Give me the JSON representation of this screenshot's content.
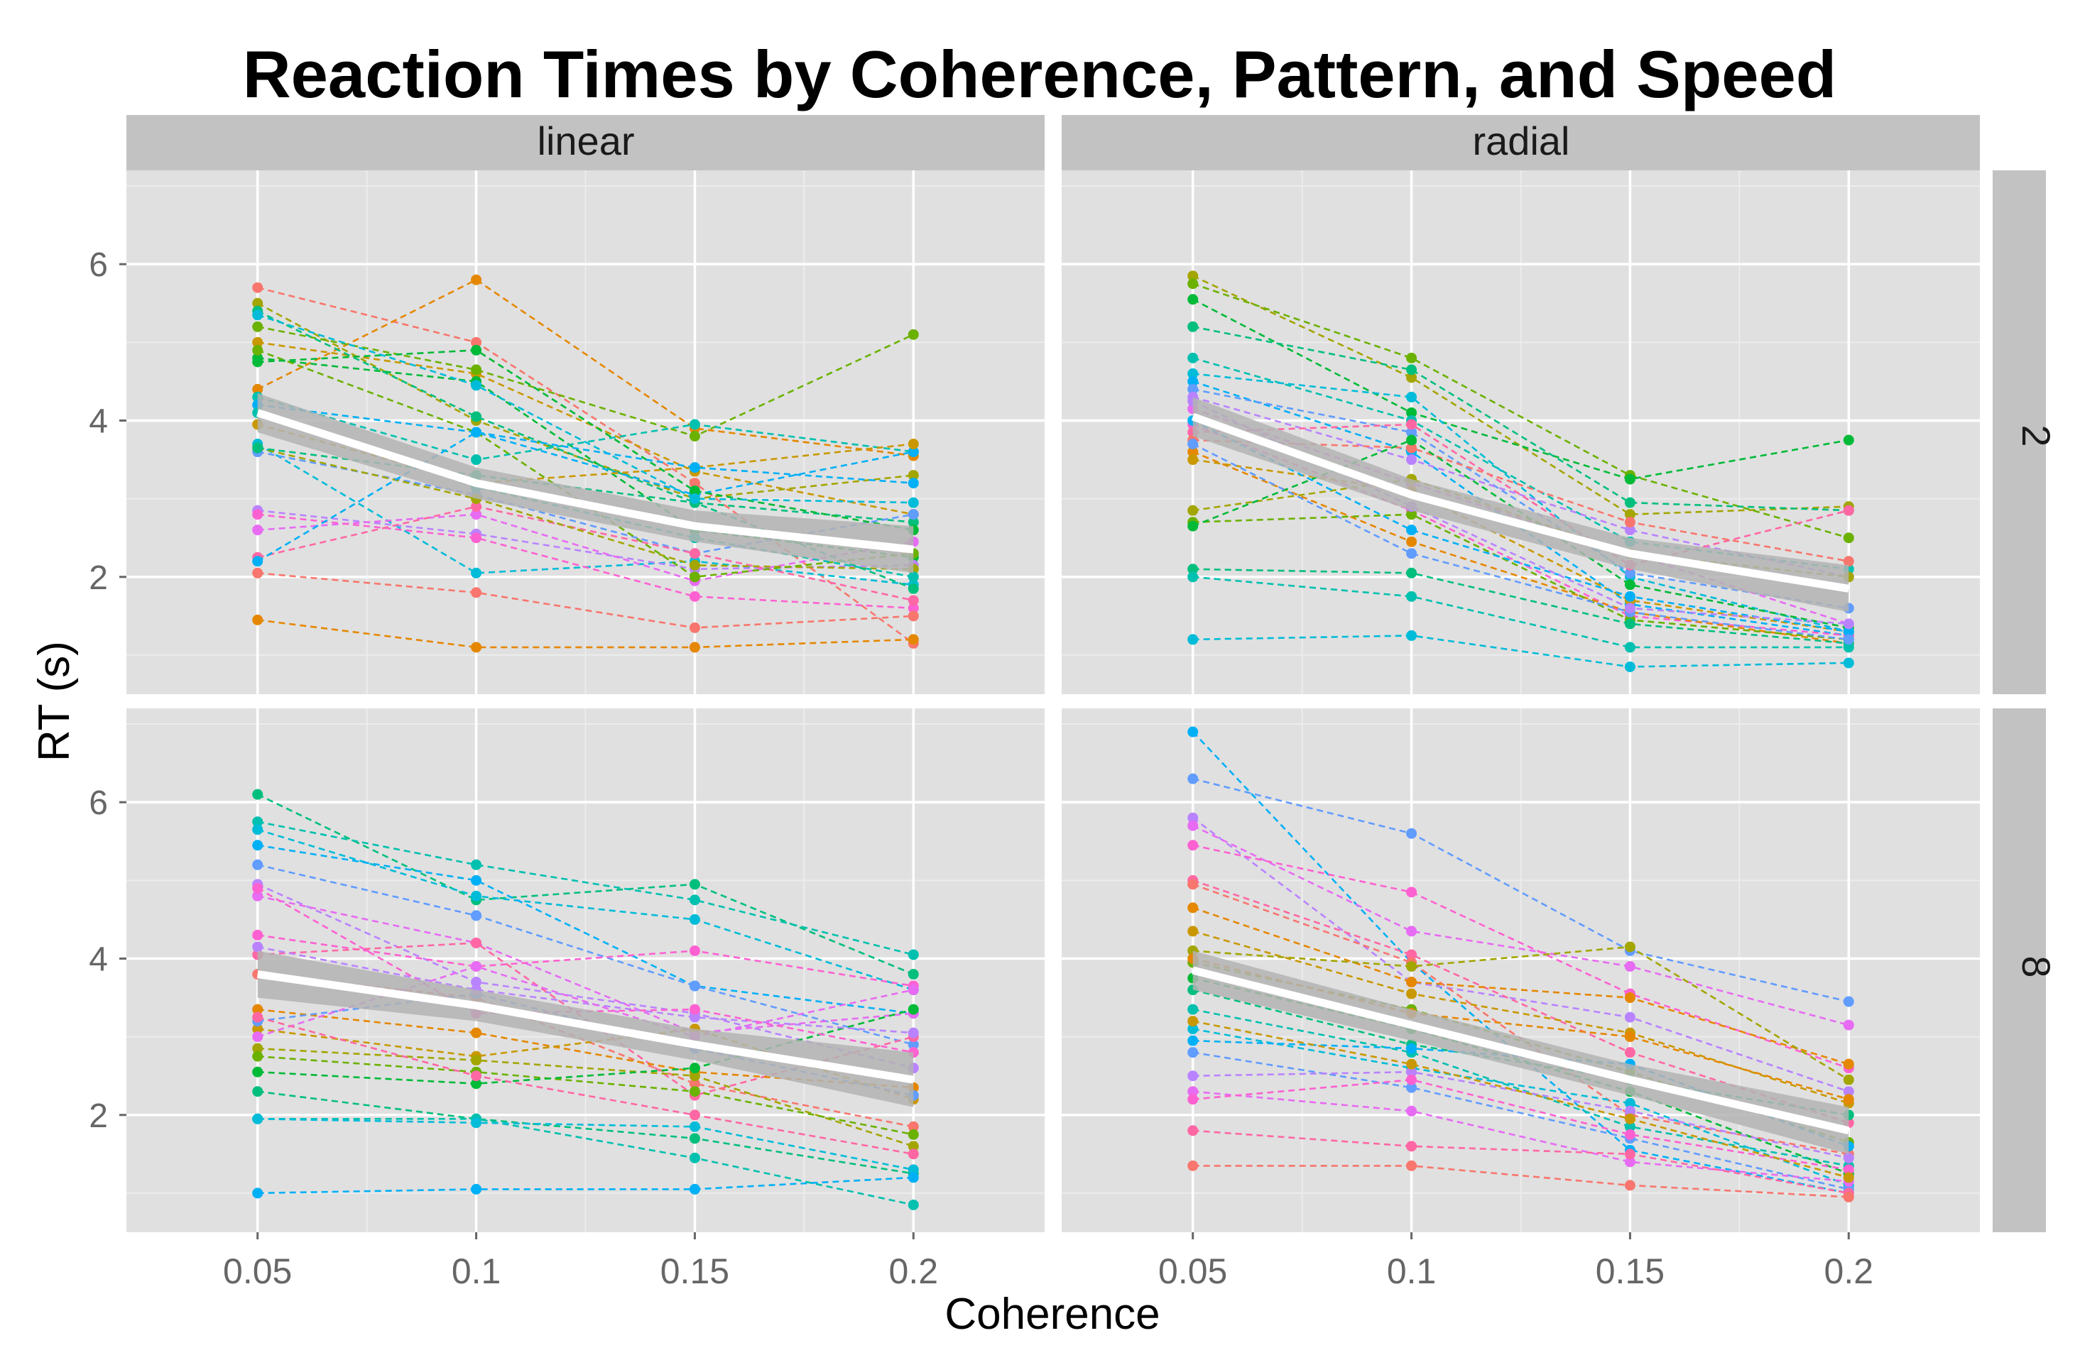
{
  "chart_data": {
    "type": "line",
    "title": "Reaction Times by Coherence, Pattern, and Speed",
    "xlabel": "Coherence",
    "ylabel": "RT (s)",
    "x": [
      0.05,
      0.1,
      0.15,
      0.2
    ],
    "x_tick_labels": [
      "0.05",
      "0.1",
      "0.15",
      "0.2"
    ],
    "y_ticks": [
      2,
      4,
      6
    ],
    "y_tick_labels": [
      "2",
      "4",
      "6"
    ],
    "ylim": [
      0.5,
      7.2
    ],
    "grid": true,
    "legend": "none",
    "column_facets": [
      "linear",
      "radial"
    ],
    "row_facets": [
      "2",
      "8"
    ],
    "colors": {
      "panel_bg": "#e0e0e0",
      "strip_bg": "#c2c2c2",
      "grid_major": "#ffffff",
      "grid_minor": "#ececec",
      "mean_line": "#ffffff",
      "ci_band": "#b3b3b3",
      "tick_text": "#666666",
      "palette": [
        "#f8766d",
        "#e58700",
        "#c99800",
        "#a3a500",
        "#6bb100",
        "#00ba38",
        "#00bf7d",
        "#00c0af",
        "#00bcd8",
        "#00b0f6",
        "#619cff",
        "#b983ff",
        "#e76bf3",
        "#fd61d1",
        "#ff67a4"
      ]
    },
    "panels": [
      {
        "pattern": "linear",
        "speed": "2",
        "mean": [
          4.1,
          3.2,
          2.65,
          2.35
        ],
        "ci_low": [
          3.85,
          3.0,
          2.45,
          2.05
        ],
        "ci_high": [
          4.35,
          3.4,
          2.85,
          2.65
        ],
        "series": [
          {
            "values": [
              5.7,
              5.0,
              3.2,
              1.15
            ]
          },
          {
            "values": [
              4.4,
              5.8,
              3.9,
              3.55
            ]
          },
          {
            "values": [
              5.0,
              4.6,
              3.35,
              2.8
            ]
          },
          {
            "values": [
              5.5,
              4.0,
              3.0,
              3.3
            ]
          },
          {
            "values": [
              5.2,
              4.65,
              3.8,
              5.1
            ]
          },
          {
            "values": [
              4.8,
              4.5,
              2.6,
              2.25
            ]
          },
          {
            "values": [
              5.4,
              4.05,
              2.95,
              2.7
            ]
          },
          {
            "values": [
              4.3,
              3.5,
              3.95,
              3.6
            ]
          },
          {
            "values": [
              3.7,
              2.05,
              2.2,
              1.9
            ]
          },
          {
            "values": [
              4.2,
              3.85,
              3.05,
              3.6
            ]
          },
          {
            "values": [
              3.6,
              3.05,
              2.3,
              2.8
            ]
          },
          {
            "values": [
              2.85,
              2.55,
              2.1,
              2.15
            ]
          },
          {
            "values": [
              2.6,
              2.8,
              1.95,
              2.45
            ]
          },
          {
            "values": [
              2.8,
              2.5,
              1.75,
              1.6
            ]
          },
          {
            "values": [
              2.25,
              2.9,
              2.3,
              1.7
            ]
          },
          {
            "values": [
              2.05,
              1.8,
              1.35,
              1.5
            ]
          },
          {
            "values": [
              1.45,
              1.1,
              1.1,
              1.2
            ]
          },
          {
            "values": [
              3.95,
              3.2,
              3.4,
              3.7
            ]
          },
          {
            "values": [
              3.65,
              3.0,
              2.15,
              2.1
            ]
          },
          {
            "values": [
              4.9,
              3.85,
              2.0,
              2.3
            ]
          },
          {
            "values": [
              4.75,
              4.9,
              3.1,
              2.6
            ]
          },
          {
            "values": [
              3.65,
              3.3,
              2.95,
              1.85
            ]
          },
          {
            "values": [
              4.1,
              3.15,
              2.5,
              2.0
            ]
          },
          {
            "values": [
              5.35,
              4.45,
              3.0,
              2.95
            ]
          },
          {
            "values": [
              2.2,
              3.85,
              3.4,
              3.2
            ]
          }
        ]
      },
      {
        "pattern": "radial",
        "speed": "2",
        "mean": [
          4.05,
          3.05,
          2.3,
          1.85
        ],
        "ci_low": [
          3.8,
          2.85,
          2.1,
          1.55
        ],
        "ci_high": [
          4.3,
          3.25,
          2.5,
          2.15
        ],
        "series": [
          {
            "values": [
              5.85,
              4.55,
              2.8,
              2.9
            ]
          },
          {
            "values": [
              5.75,
              4.8,
              3.3,
              2.5
            ]
          },
          {
            "values": [
              5.55,
              4.1,
              3.25,
              3.75
            ]
          },
          {
            "values": [
              5.2,
              4.65,
              2.95,
              2.85
            ]
          },
          {
            "values": [
              4.8,
              4.0,
              2.45,
              2.1
            ]
          },
          {
            "values": [
              4.6,
              4.3,
              2.0,
              1.3
            ]
          },
          {
            "values": [
              4.5,
              3.6,
              1.65,
              1.25
            ]
          },
          {
            "values": [
              4.4,
              3.85,
              2.05,
              1.6
            ]
          },
          {
            "values": [
              4.3,
              3.5,
              2.6,
              2.0
            ]
          },
          {
            "values": [
              4.15,
              3.2,
              2.3,
              1.4
            ]
          },
          {
            "values": [
              3.95,
              2.85,
              1.5,
              1.25
            ]
          },
          {
            "values": [
              3.85,
              3.95,
              2.15,
              2.85
            ]
          },
          {
            "values": [
              3.75,
              3.65,
              2.7,
              2.2
            ]
          },
          {
            "values": [
              3.6,
              2.45,
              1.55,
              1.15
            ]
          },
          {
            "values": [
              3.5,
              3.1,
              1.7,
              1.3
            ]
          },
          {
            "values": [
              2.85,
              3.25,
              2.3,
              2.0
            ]
          },
          {
            "values": [
              2.7,
              2.8,
              1.45,
              1.2
            ]
          },
          {
            "values": [
              2.65,
              3.75,
              1.9,
              1.35
            ]
          },
          {
            "values": [
              2.1,
              2.05,
              1.4,
              1.15
            ]
          },
          {
            "values": [
              2.0,
              1.75,
              1.1,
              1.1
            ]
          },
          {
            "values": [
              1.2,
              1.25,
              0.85,
              0.9
            ]
          },
          {
            "values": [
              4.0,
              2.6,
              1.75,
              1.3
            ]
          },
          {
            "values": [
              3.7,
              2.3,
              1.55,
              1.2
            ]
          },
          {
            "values": [
              4.25,
              2.9,
              1.6,
              1.4
            ]
          }
        ]
      },
      {
        "pattern": "linear",
        "speed": "8",
        "mean": [
          3.8,
          3.4,
          2.9,
          2.45
        ],
        "ci_low": [
          3.5,
          3.2,
          2.7,
          2.1
        ],
        "ci_high": [
          4.1,
          3.6,
          3.1,
          2.8
        ],
        "series": [
          {
            "values": [
              6.1,
              4.75,
              4.95,
              3.8
            ]
          },
          {
            "values": [
              5.75,
              5.2,
              4.75,
              4.05
            ]
          },
          {
            "values": [
              5.65,
              4.8,
              4.5,
              3.6
            ]
          },
          {
            "values": [
              5.45,
              5.0,
              3.65,
              3.3
            ]
          },
          {
            "values": [
              5.2,
              4.55,
              3.65,
              2.9
            ]
          },
          {
            "values": [
              4.95,
              3.7,
              3.3,
              2.6
            ]
          },
          {
            "values": [
              4.8,
              4.2,
              3.05,
              3.3
            ]
          },
          {
            "values": [
              4.3,
              3.9,
              4.1,
              3.65
            ]
          },
          {
            "values": [
              4.05,
              4.2,
              2.25,
              3.0
            ]
          },
          {
            "values": [
              3.8,
              3.5,
              2.4,
              1.85
            ]
          },
          {
            "values": [
              3.35,
              3.05,
              2.55,
              2.35
            ]
          },
          {
            "values": [
              3.1,
              2.75,
              3.1,
              2.2
            ]
          },
          {
            "values": [
              2.85,
              2.7,
              2.5,
              1.6
            ]
          },
          {
            "values": [
              2.75,
              2.55,
              2.3,
              1.75
            ]
          },
          {
            "values": [
              2.55,
              2.4,
              2.6,
              3.35
            ]
          },
          {
            "values": [
              2.3,
              1.95,
              1.7,
              1.25
            ]
          },
          {
            "values": [
              1.95,
              1.95,
              1.45,
              0.85
            ]
          },
          {
            "values": [
              1.95,
              1.9,
              1.85,
              1.3
            ]
          },
          {
            "values": [
              1.0,
              1.05,
              1.05,
              1.2
            ]
          },
          {
            "values": [
              3.2,
              3.55,
              2.85,
              2.25
            ]
          },
          {
            "values": [
              4.15,
              3.6,
              3.25,
              3.05
            ]
          },
          {
            "values": [
              3.0,
              3.9,
              3.0,
              3.6
            ]
          },
          {
            "values": [
              4.9,
              3.3,
              3.35,
              2.8
            ]
          },
          {
            "values": [
              3.25,
              2.5,
              2.0,
              1.5
            ]
          }
        ]
      },
      {
        "pattern": "radial",
        "speed": "8",
        "mean": [
          3.85,
          3.15,
          2.45,
          1.8
        ],
        "ci_low": [
          3.6,
          2.95,
          2.25,
          1.5
        ],
        "ci_high": [
          4.1,
          3.35,
          2.65,
          2.1
        ],
        "series": [
          {
            "values": [
              6.9,
              3.95,
              1.55,
              1.0
            ]
          },
          {
            "values": [
              6.3,
              5.6,
              4.1,
              3.45
            ]
          },
          {
            "values": [
              5.8,
              3.7,
              3.25,
              2.3
            ]
          },
          {
            "values": [
              5.7,
              4.35,
              3.9,
              3.15
            ]
          },
          {
            "values": [
              5.45,
              4.85,
              3.55,
              2.6
            ]
          },
          {
            "values": [
              5.0,
              4.05,
              2.8,
              1.9
            ]
          },
          {
            "values": [
              4.95,
              3.95,
              2.0,
              1.5
            ]
          },
          {
            "values": [
              4.65,
              3.7,
              3.5,
              2.65
            ]
          },
          {
            "values": [
              4.35,
              3.55,
              3.05,
              2.15
            ]
          },
          {
            "values": [
              4.1,
              3.9,
              4.15,
              2.45
            ]
          },
          {
            "values": [
              3.95,
              3.35,
              2.55,
              1.65
            ]
          },
          {
            "values": [
              3.75,
              3.1,
              2.3,
              1.25
            ]
          },
          {
            "values": [
              3.6,
              2.9,
              2.45,
              2.0
            ]
          },
          {
            "values": [
              3.35,
              2.8,
              1.85,
              1.35
            ]
          },
          {
            "values": [
              3.1,
              2.6,
              2.15,
              1.1
            ]
          },
          {
            "values": [
              2.95,
              2.85,
              2.65,
              1.6
            ]
          },
          {
            "values": [
              2.8,
              2.35,
              1.7,
              1.05
            ]
          },
          {
            "values": [
              2.5,
              2.55,
              2.05,
              1.45
            ]
          },
          {
            "values": [
              2.3,
              2.05,
              1.4,
              1.15
            ]
          },
          {
            "values": [
              2.2,
              2.45,
              1.75,
              1.3
            ]
          },
          {
            "values": [
              1.8,
              1.6,
              1.5,
              1.0
            ]
          },
          {
            "values": [
              1.35,
              1.35,
              1.1,
              0.95
            ]
          },
          {
            "values": [
              4.0,
              3.3,
              3.0,
              2.2
            ]
          },
          {
            "values": [
              3.2,
              2.65,
              1.95,
              1.2
            ]
          }
        ]
      }
    ]
  }
}
